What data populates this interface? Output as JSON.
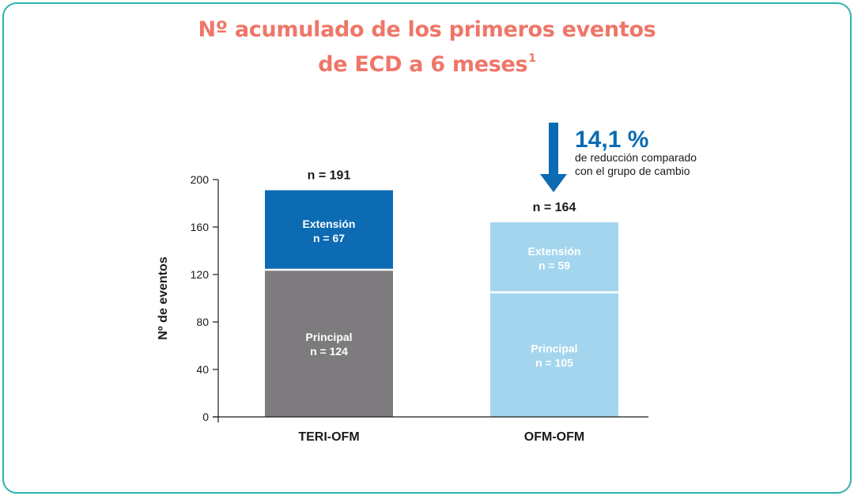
{
  "title": {
    "line1": "Nº acumulado de los primeros eventos",
    "line2": "de ECD a 6 meses",
    "superscript": "1"
  },
  "chart_data": {
    "type": "bar",
    "stacked": true,
    "ylabel": "Nº de eventos",
    "xlabel": "",
    "ylim": [
      0,
      200
    ],
    "yticks": [
      "0",
      "40",
      "80",
      "120",
      "160",
      "200"
    ],
    "categories": [
      {
        "name": "TERI-OFM",
        "total_label": "n = 191",
        "segments": [
          {
            "name": "Principal",
            "label": "Principal",
            "n_label": "n = 124",
            "value": 124,
            "color": "#7d7b7e",
            "text_color": "#ffffff"
          },
          {
            "name": "Extensión",
            "label": "Extensión",
            "n_label": "n = 67",
            "value": 67,
            "color": "#0c6bb3",
            "text_color": "#ffffff"
          }
        ]
      },
      {
        "name": "OFM-OFM",
        "total_label": "n = 164",
        "segments": [
          {
            "name": "Principal",
            "label": "Principal",
            "n_label": "n = 105",
            "value": 105,
            "color": "#a3d6ee",
            "text_color": "#ffffff"
          },
          {
            "name": "Extensión",
            "label": "Extensión",
            "n_label": "n = 59",
            "value": 59,
            "color": "#a3d6ee",
            "text_color": "#ffffff"
          }
        ]
      }
    ],
    "annotation": {
      "value": "14,1 %",
      "line1": "de reducción comparado",
      "line2": "con el grupo de cambio",
      "color": "#0c6bb3"
    }
  },
  "colors": {
    "title": "#ef7668",
    "border": "#2bb3ad",
    "axis": "#1a1a1a",
    "divider": "#ffffff"
  }
}
